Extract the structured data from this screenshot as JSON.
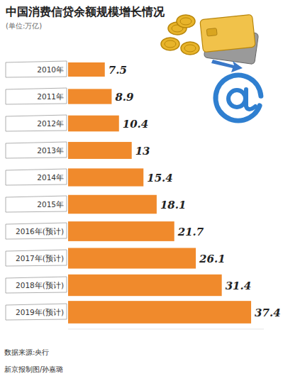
{
  "chart_data": {
    "type": "bar",
    "orientation": "horizontal",
    "title": "中国消费信贷余额规模增长情况",
    "subtitle": "(单位:万亿)",
    "categories": [
      "2010年",
      "2011年",
      "2012年",
      "2013年",
      "2014年",
      "2015年",
      "2016年(预计)",
      "2017年(预计)",
      "2018年(预计)",
      "2019年(预计)"
    ],
    "values": [
      7.5,
      8.9,
      10.4,
      13,
      15.4,
      18.1,
      21.7,
      26.1,
      31.4,
      37.4
    ],
    "color": "#f08a2c",
    "xlim": [
      0,
      40
    ],
    "grid": false,
    "tick_labels": "y",
    "data_labels": true,
    "source": "数据来源:央行",
    "credit": "新京报制图/孙嘉璐"
  }
}
